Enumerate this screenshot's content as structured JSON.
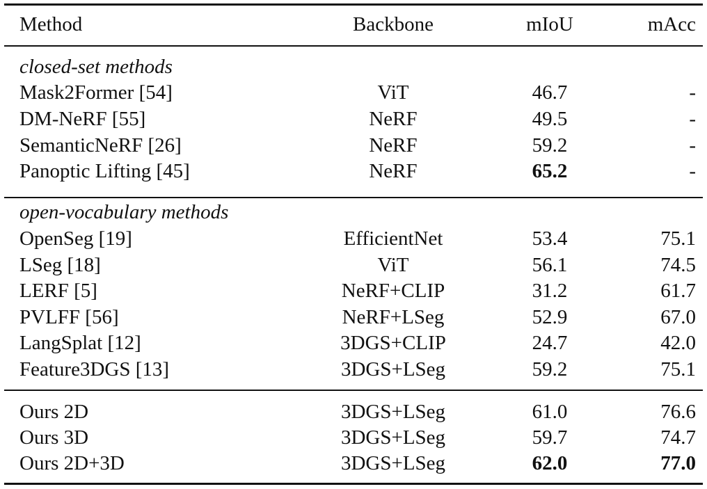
{
  "header": {
    "method": "Method",
    "backbone": "Backbone",
    "miou": "mIoU",
    "macc": "mAcc"
  },
  "sections": [
    {
      "title": "closed-set methods",
      "rows": [
        {
          "method": "Mask2Former [54]",
          "backbone": "ViT",
          "miou": "46.7",
          "macc": "-"
        },
        {
          "method": "DM-NeRF [55]",
          "backbone": "NeRF",
          "miou": "49.5",
          "macc": "-"
        },
        {
          "method": "SemanticNeRF [26]",
          "backbone": "NeRF",
          "miou": "59.2",
          "macc": "-"
        },
        {
          "method": "Panoptic Lifting [45]",
          "backbone": "NeRF",
          "miou": "65.2",
          "macc": "-",
          "miou_bold": true
        }
      ]
    },
    {
      "title": "open-vocabulary methods",
      "rows": [
        {
          "method": "OpenSeg [19]",
          "backbone": "EfficientNet",
          "miou": "53.4",
          "macc": "75.1"
        },
        {
          "method": "LSeg [18]",
          "backbone": "ViT",
          "miou": "56.1",
          "macc": "74.5"
        },
        {
          "method": "LERF [5]",
          "backbone": "NeRF+CLIP",
          "miou": "31.2",
          "macc": "61.7"
        },
        {
          "method": "PVLFF [56]",
          "backbone": "NeRF+LSeg",
          "miou": "52.9",
          "macc": "67.0"
        },
        {
          "method": "LangSplat [12]",
          "backbone": "3DGS+CLIP",
          "miou": "24.7",
          "macc": "42.0"
        },
        {
          "method": "Feature3DGS [13]",
          "backbone": "3DGS+LSeg",
          "miou": "59.2",
          "macc": "75.1"
        }
      ]
    },
    {
      "title": "",
      "rows": [
        {
          "method": "Ours 2D",
          "backbone": "3DGS+LSeg",
          "miou": "61.0",
          "macc": "76.6"
        },
        {
          "method": "Ours 3D",
          "backbone": "3DGS+LSeg",
          "miou": "59.7",
          "macc": "74.7"
        },
        {
          "method": "Ours 2D+3D",
          "backbone": "3DGS+LSeg",
          "miou": "62.0",
          "macc": "77.0",
          "miou_bold": true,
          "macc_bold": true
        }
      ]
    }
  ]
}
